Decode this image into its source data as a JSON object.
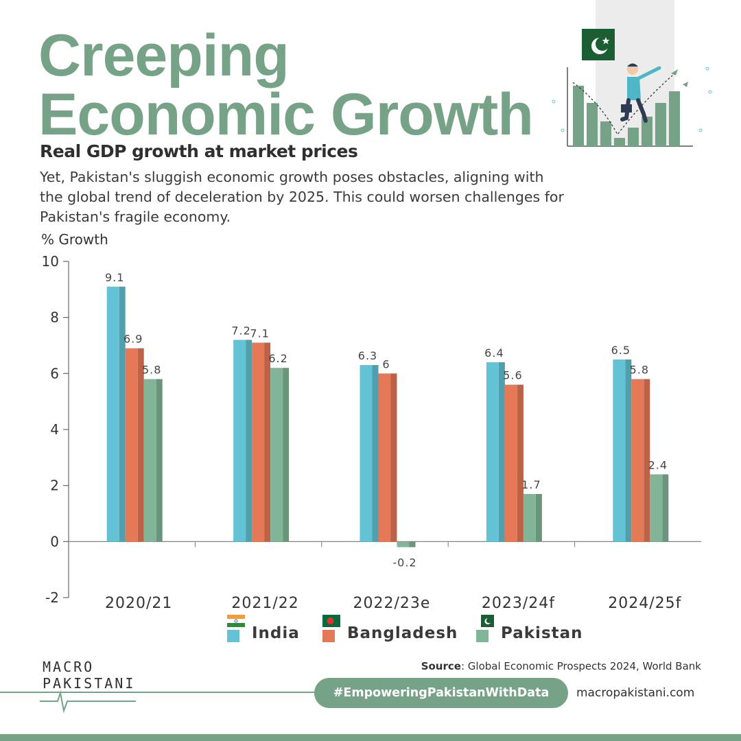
{
  "header": {
    "title_line1": "Creeping",
    "title_line2": "Economic Growth",
    "subtitle": "Real GDP growth at market prices",
    "description": "Yet, Pakistan's sluggish economic growth poses obstacles, aligning with the global trend of deceleration by 2025. This could worsen challenges for Pakistan's fragile economy."
  },
  "chart_data": {
    "type": "bar",
    "ylabel": "% Growth",
    "ylim": [
      -2,
      10
    ],
    "yticks": [
      10,
      8,
      6,
      4,
      2,
      0,
      -2
    ],
    "categories": [
      "2020/21",
      "2021/22",
      "2022/23e",
      "2023/24f",
      "2024/25f"
    ],
    "series": [
      {
        "name": "India",
        "color": "#63c2d3",
        "values": [
          9.1,
          7.2,
          6.3,
          6.4,
          6.5
        ]
      },
      {
        "name": "Bangladesh",
        "color": "#e57856",
        "values": [
          6.9,
          7.1,
          6,
          5.6,
          5.8
        ]
      },
      {
        "name": "Pakistan",
        "color": "#82b498",
        "values": [
          5.8,
          6.2,
          -0.2,
          1.7,
          2.4
        ]
      }
    ],
    "legend": "bottom",
    "grid": false
  },
  "legend": {
    "india_label": "India",
    "bangladesh_label": "Bangladesh",
    "pakistan_label": "Pakistan"
  },
  "footer": {
    "source_label": "Source",
    "source_text": ": Global Economic Prospects 2024, World Bank",
    "logo_line1": "MACRO",
    "logo_line2": "PAKISTANI",
    "hashtag": "#EmpoweringPakistanWithData",
    "website": "macropakistani.com"
  },
  "colors": {
    "accent": "#76a287",
    "india": "#63c2d3",
    "bangladesh": "#e57856",
    "pakistan": "#82b498"
  }
}
